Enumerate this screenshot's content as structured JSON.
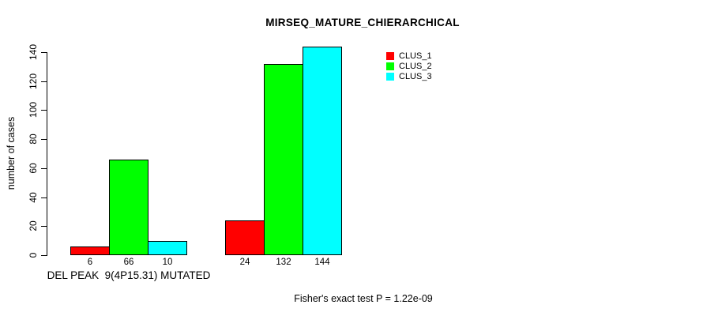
{
  "chart_data": {
    "type": "bar",
    "title": "MIRSEQ_MATURE_CHIERARCHICAL",
    "ylabel": "number of cases",
    "ylim": [
      0,
      140
    ],
    "yticks": [
      0,
      20,
      40,
      60,
      80,
      100,
      120,
      140
    ],
    "grid": false,
    "legend_position": "top-right",
    "categories": [
      "DEL PEAK  9(4P15.31) MUTATED",
      ""
    ],
    "groups": [
      {
        "label": "DEL PEAK  9(4P15.31) MUTATED",
        "values": [
          6,
          66,
          10
        ]
      },
      {
        "label": "",
        "values": [
          24,
          132,
          144
        ]
      }
    ],
    "series": [
      {
        "name": "CLUS_1",
        "color": "#ff0000"
      },
      {
        "name": "CLUS_2",
        "color": "#00ff00"
      },
      {
        "name": "CLUS_3",
        "color": "#00ffff"
      }
    ],
    "bar_value_labels": [
      [
        6,
        66,
        10
      ],
      [
        24,
        132,
        144
      ]
    ],
    "annotation": "Fisher's exact test P = 1.22e-09"
  },
  "colors": {
    "axis": "#000000",
    "text": "#000000",
    "background": "#ffffff"
  }
}
